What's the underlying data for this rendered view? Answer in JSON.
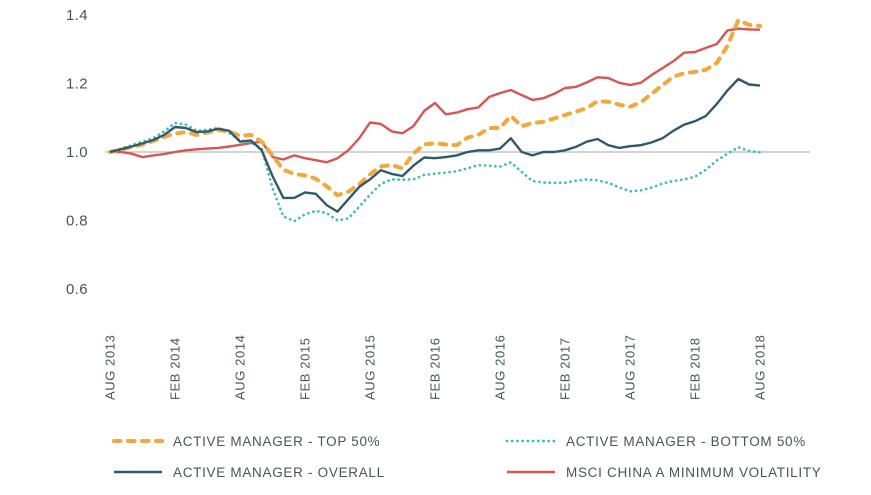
{
  "colors": {
    "top50": "#F3A83B",
    "overall": "#30596D",
    "bottom50": "#3CBDB5",
    "msci": "#D75552",
    "gridline": "#C6C6C6",
    "axis_text": "#4B535C"
  },
  "legend": {
    "order": [
      "top50",
      "bottom50",
      "overall",
      "msci"
    ]
  },
  "chart_data": {
    "type": "line",
    "title": "",
    "xlabel": "",
    "ylabel": "",
    "baseline": 1.0,
    "ylim": [
      0.6,
      1.4
    ],
    "grid": "single horizontal gridline at 1.0",
    "legend_position": "bottom",
    "y_ticks": [
      "0.6",
      "0.8",
      "1.0",
      "1.2",
      "1.4"
    ],
    "x_ticks": [
      {
        "i": 0,
        "label": "AUG 2013"
      },
      {
        "i": 6,
        "label": "FEB 2014"
      },
      {
        "i": 12,
        "label": "AUG 2014"
      },
      {
        "i": 18,
        "label": "FEB 2015"
      },
      {
        "i": 24,
        "label": "AUG 2015"
      },
      {
        "i": 30,
        "label": "FEB 2016"
      },
      {
        "i": 36,
        "label": "AUG 2016"
      },
      {
        "i": 42,
        "label": "FEB 2017"
      },
      {
        "i": 48,
        "label": "AUG 2017"
      },
      {
        "i": 54,
        "label": "FEB 2018"
      },
      {
        "i": 60,
        "label": "AUG 2018"
      }
    ],
    "x": [
      "2013-08",
      "2013-09",
      "2013-10",
      "2013-11",
      "2013-12",
      "2014-01",
      "2014-02",
      "2014-03",
      "2014-04",
      "2014-05",
      "2014-06",
      "2014-07",
      "2014-08",
      "2014-09",
      "2014-10",
      "2014-11",
      "2014-12",
      "2015-01",
      "2015-02",
      "2015-03",
      "2015-04",
      "2015-05",
      "2015-06",
      "2015-07",
      "2015-08",
      "2015-09",
      "2015-10",
      "2015-11",
      "2015-12",
      "2016-01",
      "2016-02",
      "2016-03",
      "2016-04",
      "2016-05",
      "2016-06",
      "2016-07",
      "2016-08",
      "2016-09",
      "2016-10",
      "2016-11",
      "2016-12",
      "2017-01",
      "2017-02",
      "2017-03",
      "2017-04",
      "2017-05",
      "2017-06",
      "2017-07",
      "2017-08",
      "2017-09",
      "2017-10",
      "2017-11",
      "2017-12",
      "2018-01",
      "2018-02",
      "2018-03",
      "2018-04",
      "2018-05",
      "2018-06",
      "2018-07",
      "2018-08"
    ],
    "series": [
      {
        "key": "msci",
        "label": "MSCI CHINA A MINIMUM VOLATILITY",
        "line": "solid",
        "color": "#D75552",
        "values": [
          1.0,
          1.0,
          0.995,
          0.985,
          0.99,
          0.994,
          1.0,
          1.005,
          1.008,
          1.01,
          1.012,
          1.016,
          1.021,
          1.026,
          1.03,
          0.985,
          0.978,
          0.99,
          0.982,
          0.976,
          0.97,
          0.982,
          1.005,
          1.04,
          1.086,
          1.082,
          1.06,
          1.055,
          1.075,
          1.12,
          1.143,
          1.11,
          1.115,
          1.125,
          1.13,
          1.161,
          1.172,
          1.181,
          1.166,
          1.152,
          1.157,
          1.17,
          1.187,
          1.19,
          1.203,
          1.218,
          1.216,
          1.202,
          1.196,
          1.202,
          1.225,
          1.245,
          1.265,
          1.29,
          1.292,
          1.304,
          1.315,
          1.355,
          1.36,
          1.358,
          1.357
        ]
      },
      {
        "key": "bottom50",
        "label": "ACTIVE MANAGER - BOTTOM 50%",
        "line": "dotted",
        "color": "#3CBDB5",
        "values": [
          1.0,
          1.01,
          1.02,
          1.03,
          1.04,
          1.06,
          1.085,
          1.08,
          1.062,
          1.065,
          1.07,
          1.055,
          1.035,
          1.028,
          1.01,
          0.895,
          0.812,
          0.798,
          0.818,
          0.828,
          0.822,
          0.8,
          0.806,
          0.84,
          0.875,
          0.907,
          0.92,
          0.919,
          0.92,
          0.933,
          0.937,
          0.94,
          0.944,
          0.952,
          0.962,
          0.96,
          0.957,
          0.97,
          0.942,
          0.915,
          0.911,
          0.91,
          0.91,
          0.916,
          0.92,
          0.917,
          0.91,
          0.897,
          0.885,
          0.888,
          0.896,
          0.908,
          0.915,
          0.92,
          0.928,
          0.948,
          0.975,
          0.995,
          1.014,
          1.003,
          0.999
        ]
      },
      {
        "key": "top50",
        "label": "ACTIVE MANAGER - TOP 50%",
        "line": "dashed",
        "color": "#F3A83B",
        "values": [
          1.0,
          1.007,
          1.015,
          1.022,
          1.032,
          1.044,
          1.054,
          1.058,
          1.05,
          1.057,
          1.064,
          1.06,
          1.047,
          1.05,
          1.03,
          0.99,
          0.948,
          0.936,
          0.932,
          0.922,
          0.9,
          0.874,
          0.884,
          0.906,
          0.935,
          0.958,
          0.962,
          0.952,
          0.995,
          1.022,
          1.026,
          1.022,
          1.02,
          1.042,
          1.05,
          1.07,
          1.07,
          1.105,
          1.075,
          1.085,
          1.088,
          1.098,
          1.108,
          1.118,
          1.128,
          1.148,
          1.147,
          1.138,
          1.132,
          1.145,
          1.17,
          1.195,
          1.22,
          1.23,
          1.234,
          1.24,
          1.26,
          1.31,
          1.385,
          1.371,
          1.368
        ]
      },
      {
        "key": "overall",
        "label": "ACTIVE MANAGER - OVERALL",
        "line": "solid",
        "color": "#30596D",
        "values": [
          1.0,
          1.008,
          1.016,
          1.025,
          1.035,
          1.05,
          1.073,
          1.07,
          1.058,
          1.06,
          1.068,
          1.062,
          1.03,
          1.034,
          1.005,
          0.93,
          0.866,
          0.866,
          0.882,
          0.878,
          0.845,
          0.826,
          0.862,
          0.898,
          0.92,
          0.947,
          0.936,
          0.93,
          0.96,
          0.984,
          0.982,
          0.985,
          0.99,
          1.0,
          1.005,
          1.005,
          1.01,
          1.04,
          1.0,
          0.99,
          1.0,
          1.0,
          1.005,
          1.015,
          1.03,
          1.038,
          1.02,
          1.012,
          1.017,
          1.02,
          1.028,
          1.04,
          1.062,
          1.08,
          1.09,
          1.105,
          1.14,
          1.18,
          1.213,
          1.197,
          1.194
        ]
      }
    ]
  }
}
